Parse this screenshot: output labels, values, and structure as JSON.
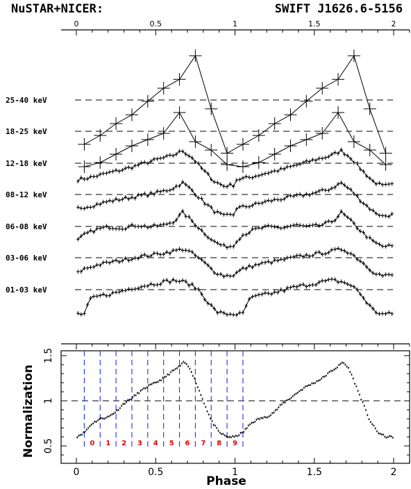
{
  "title_left": "NuSTAR+NICER:",
  "title_right": "SWIFT J1626.6-5156",
  "chart_data": [
    {
      "type": "line",
      "panel": "top",
      "x_ticks": [
        "0",
        "0.5",
        "1",
        "1.5",
        "2"
      ],
      "xlim": [
        0,
        2
      ],
      "series": [
        {
          "name": "25-40 keV",
          "x": [
            0.05,
            0.15,
            0.25,
            0.35,
            0.45,
            0.55,
            0.65,
            0.75,
            0.85,
            0.95,
            1.05,
            1.15,
            1.25,
            1.35,
            1.45,
            1.55,
            1.65,
            1.75,
            1.85,
            1.95
          ],
          "y": [
            -0.75,
            -0.6,
            -0.4,
            -0.25,
            -0.02,
            0.2,
            0.35,
            0.75,
            -0.15,
            -0.9,
            -0.75,
            -0.6,
            -0.4,
            -0.25,
            -0.02,
            0.2,
            0.35,
            0.75,
            -0.15,
            -0.9
          ]
        },
        {
          "name": "18-25 keV",
          "x": [
            0.05,
            0.15,
            0.25,
            0.35,
            0.45,
            0.55,
            0.65,
            0.75,
            0.85,
            0.95,
            1.05,
            1.15,
            1.25,
            1.35,
            1.45,
            1.55,
            1.65,
            1.75,
            1.85,
            1.95
          ],
          "y": [
            -0.85,
            -0.75,
            -0.55,
            -0.35,
            -0.2,
            -0.05,
            0.45,
            -0.25,
            -0.45,
            -0.8,
            -0.85,
            -0.75,
            -0.55,
            -0.35,
            -0.2,
            -0.05,
            0.45,
            -0.25,
            -0.45,
            -0.8
          ]
        },
        {
          "name": "12-18 keV",
          "shape": [
            [
              0,
              -0.6
            ],
            [
              0.1,
              -0.5
            ],
            [
              0.2,
              -0.35
            ],
            [
              0.3,
              -0.22
            ],
            [
              0.4,
              -0.05
            ],
            [
              0.5,
              0.12
            ],
            [
              0.6,
              0.26
            ],
            [
              0.67,
              0.45
            ],
            [
              0.73,
              0.2
            ],
            [
              0.8,
              -0.25
            ],
            [
              0.87,
              -0.65
            ],
            [
              0.93,
              -0.82
            ],
            [
              1.0,
              -0.78
            ]
          ]
        },
        {
          "name": "08-12 keV",
          "shape": [
            [
              0,
              -0.5
            ],
            [
              0.1,
              -0.4
            ],
            [
              0.2,
              -0.25
            ],
            [
              0.3,
              -0.15
            ],
            [
              0.4,
              -0.05
            ],
            [
              0.5,
              0.05
            ],
            [
              0.6,
              0.2
            ],
            [
              0.67,
              0.42
            ],
            [
              0.73,
              0.15
            ],
            [
              0.8,
              -0.25
            ],
            [
              0.87,
              -0.6
            ],
            [
              0.93,
              -0.78
            ],
            [
              1.0,
              -0.72
            ]
          ]
        },
        {
          "name": "06-08 keV",
          "shape": [
            [
              0,
              -0.55
            ],
            [
              0.05,
              -0.3
            ],
            [
              0.12,
              -0.12
            ],
            [
              0.2,
              -0.02
            ],
            [
              0.3,
              -0.05
            ],
            [
              0.38,
              0.05
            ],
            [
              0.46,
              -0.02
            ],
            [
              0.55,
              0.05
            ],
            [
              0.62,
              0.2
            ],
            [
              0.67,
              0.5
            ],
            [
              0.72,
              0.25
            ],
            [
              0.8,
              -0.2
            ],
            [
              0.87,
              -0.55
            ],
            [
              0.93,
              -0.72
            ],
            [
              1.0,
              -0.7
            ]
          ]
        },
        {
          "name": "03-06 keV",
          "shape": [
            [
              0,
              -0.58
            ],
            [
              0.05,
              -0.4
            ],
            [
              0.12,
              -0.28
            ],
            [
              0.2,
              -0.18
            ],
            [
              0.3,
              -0.08
            ],
            [
              0.4,
              0.04
            ],
            [
              0.5,
              0.12
            ],
            [
              0.6,
              0.22
            ],
            [
              0.68,
              0.32
            ],
            [
              0.74,
              0.12
            ],
            [
              0.8,
              -0.15
            ],
            [
              0.87,
              -0.5
            ],
            [
              0.93,
              -0.65
            ],
            [
              1.0,
              -0.62
            ]
          ]
        },
        {
          "name": "01-03 keV",
          "shape": [
            [
              0,
              -0.78
            ],
            [
              0.05,
              -0.78
            ],
            [
              0.09,
              -0.3
            ],
            [
              0.15,
              -0.2
            ],
            [
              0.25,
              -0.1
            ],
            [
              0.35,
              0.05
            ],
            [
              0.45,
              0.15
            ],
            [
              0.55,
              0.25
            ],
            [
              0.62,
              0.3
            ],
            [
              0.7,
              0.22
            ],
            [
              0.77,
              0.0
            ],
            [
              0.83,
              -0.4
            ],
            [
              0.88,
              -0.7
            ],
            [
              0.93,
              -0.78
            ],
            [
              1.0,
              -0.78
            ]
          ]
        }
      ]
    },
    {
      "type": "scatter",
      "panel": "bottom",
      "xlabel": "Phase",
      "ylabel": "Normalization",
      "xlim": [
        -0.1,
        2.05
      ],
      "ylim": [
        0.33,
        1.55
      ],
      "x_ticks": [
        "0",
        "0.5",
        "1",
        "1.5",
        "2"
      ],
      "y_ticks": [
        "0.5",
        "1",
        "1.5"
      ],
      "reference_line": 1.0,
      "phase_bin_edges": [
        0.05,
        0.15,
        0.25,
        0.35,
        0.45,
        0.55,
        0.65,
        0.75,
        0.85,
        0.95,
        1.05
      ],
      "phase_bin_labels": [
        "0",
        "1",
        "2",
        "3",
        "4",
        "5",
        "6",
        "7",
        "8",
        "9"
      ],
      "profile_shape": [
        [
          0,
          0.6
        ],
        [
          0.05,
          0.65
        ],
        [
          0.1,
          0.75
        ],
        [
          0.15,
          0.8
        ],
        [
          0.2,
          0.82
        ],
        [
          0.25,
          0.88
        ],
        [
          0.3,
          0.97
        ],
        [
          0.35,
          1.03
        ],
        [
          0.4,
          1.1
        ],
        [
          0.45,
          1.16
        ],
        [
          0.5,
          1.2
        ],
        [
          0.55,
          1.25
        ],
        [
          0.6,
          1.32
        ],
        [
          0.65,
          1.38
        ],
        [
          0.68,
          1.43
        ],
        [
          0.72,
          1.35
        ],
        [
          0.75,
          1.22
        ],
        [
          0.8,
          1.0
        ],
        [
          0.85,
          0.78
        ],
        [
          0.9,
          0.65
        ],
        [
          0.95,
          0.6
        ],
        [
          1.0,
          0.6
        ]
      ]
    }
  ],
  "colors": {
    "bin_lines": "#1a2ef0",
    "bin_labels": "#e00000",
    "axes": "#000000"
  }
}
